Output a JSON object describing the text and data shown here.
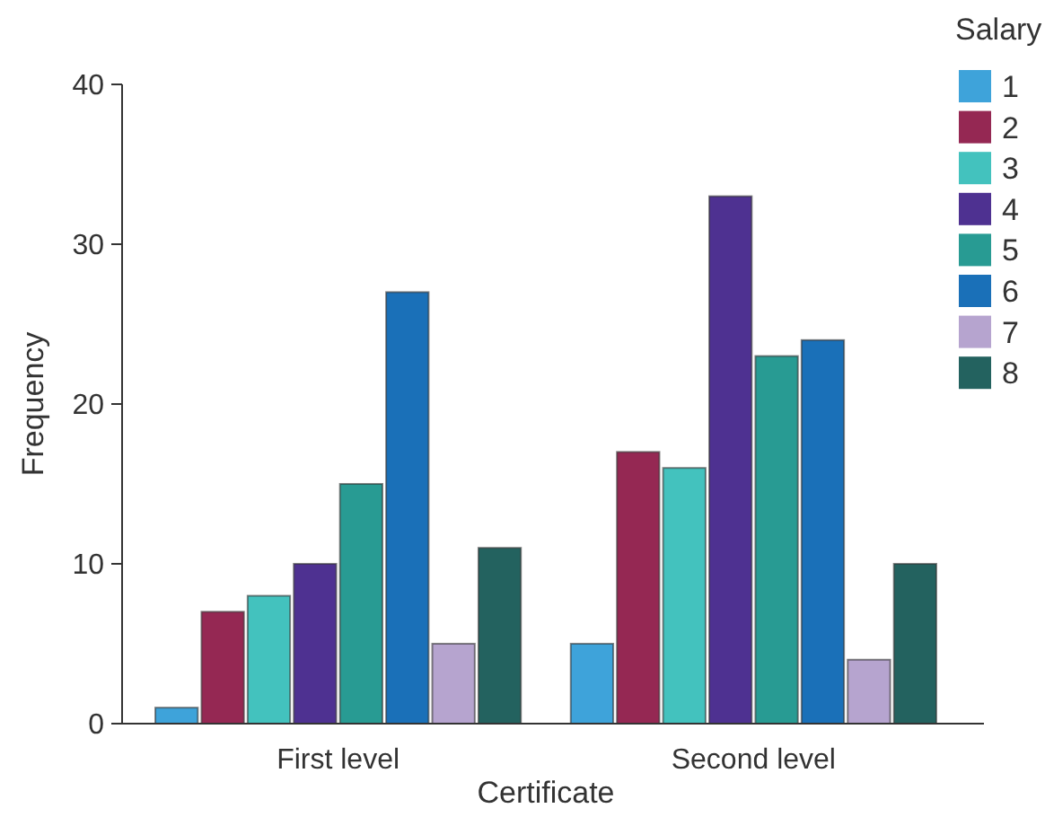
{
  "chart_data": {
    "type": "bar",
    "xlabel": "Certificate",
    "ylabel": "Frequency",
    "legend_title": "Salary",
    "legend": "top right",
    "categories": [
      "First level",
      "Second level"
    ],
    "ylim": [
      0,
      40
    ],
    "yticks": [
      0,
      10,
      20,
      30,
      40
    ],
    "series": [
      {
        "name": "1",
        "color": "#3ea3da",
        "values": [
          1,
          5
        ]
      },
      {
        "name": "2",
        "color": "#952853",
        "values": [
          7,
          17
        ]
      },
      {
        "name": "3",
        "color": "#43c2be",
        "values": [
          8,
          16
        ]
      },
      {
        "name": "4",
        "color": "#4e3191",
        "values": [
          10,
          33
        ]
      },
      {
        "name": "5",
        "color": "#289b93",
        "values": [
          15,
          23
        ]
      },
      {
        "name": "6",
        "color": "#1a70b8",
        "values": [
          27,
          24
        ]
      },
      {
        "name": "7",
        "color": "#b6a4cf",
        "values": [
          5,
          4
        ]
      },
      {
        "name": "8",
        "color": "#23625f",
        "values": [
          11,
          10
        ]
      }
    ]
  }
}
